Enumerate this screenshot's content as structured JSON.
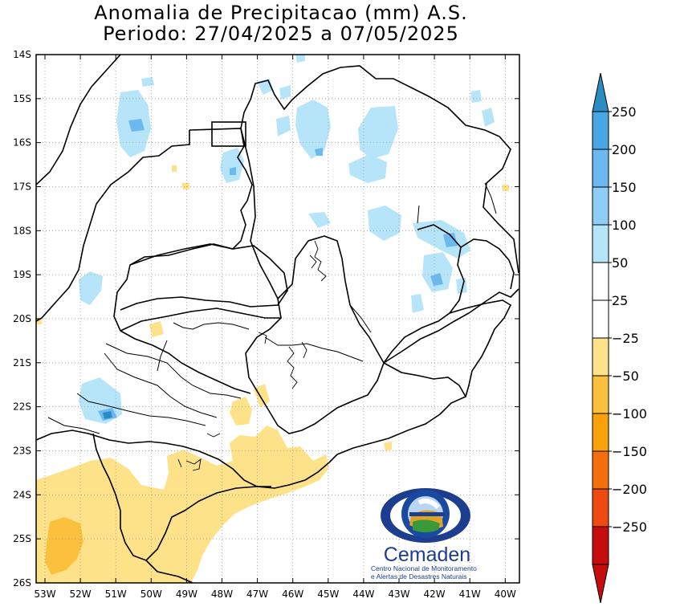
{
  "title_line1": "Anomalia de Precipitacao (mm) A.S.",
  "title_line2": "Periodo: 27/04/2025 a 07/05/2025",
  "lat_labels": [
    "14S",
    "15S",
    "16S",
    "17S",
    "18S",
    "19S",
    "20S",
    "21S",
    "22S",
    "23S",
    "24S",
    "25S",
    "26S"
  ],
  "lon_labels": [
    "53W",
    "52W",
    "51W",
    "50W",
    "49W",
    "48W",
    "47W",
    "46W",
    "45W",
    "44W",
    "43W",
    "42W",
    "41W",
    "40W"
  ],
  "colorbar": {
    "labels": [
      "250",
      "200",
      "150",
      "100",
      "50",
      "25",
      "−25",
      "−50",
      "−100",
      "−150",
      "−200",
      "−250"
    ],
    "colors_positive": [
      "#2b8cc4",
      "#4aa6e3",
      "#6bb9ee",
      "#8ecdf6",
      "#b6e5fa",
      "#ffffff"
    ],
    "colors_negative": [
      "#ffffff",
      "#fde28a",
      "#fbc13e",
      "#f8a10a",
      "#f46f0b",
      "#ee4a12",
      "#c60d0d"
    ]
  },
  "logo": {
    "name": "Cemaden",
    "subtitle_line1": "Centro Nacional de Monitoramento",
    "subtitle_line2": "e Alertas de Desastres Naturais"
  },
  "chart_data": {
    "type": "heatmap",
    "title": "Anomalia de Precipitacao (mm) A.S.",
    "subtitle": "Periodo: 27/04/2025 a 07/05/2025",
    "lon_range": [
      "53.3W",
      "39.6W"
    ],
    "lat_range": [
      "14S",
      "26S"
    ],
    "colorbar_levels": [
      -250,
      -200,
      -150,
      -100,
      -50,
      -25,
      25,
      50,
      100,
      150,
      200,
      250
    ],
    "grid": true
  }
}
